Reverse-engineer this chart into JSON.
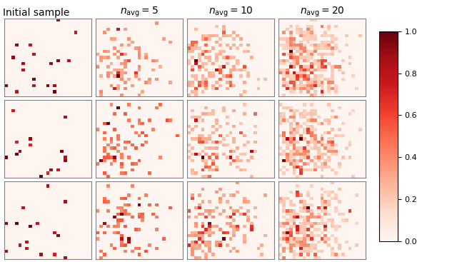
{
  "title_col1": "Initial sample",
  "title_col2": "$n_{\\mathrm{avg}} = 5$",
  "title_col3": "$n_{\\mathrm{avg}} = 10$",
  "title_col4": "$n_{\\mathrm{avg}} = 20$",
  "grid_size": 25,
  "n_rows": 3,
  "n_cols": 4,
  "colormap": "Reds",
  "vmin": 0.0,
  "vmax": 1.0,
  "cbar_ticks": [
    0.0,
    0.2,
    0.4,
    0.6,
    0.8,
    1.0
  ],
  "seeds": [
    0,
    1,
    2
  ],
  "n_avg_values": [
    5,
    10,
    20
  ],
  "n_particles_row": [
    18,
    15,
    16
  ],
  "title_fontsize": 10,
  "tick_fontsize": 8
}
